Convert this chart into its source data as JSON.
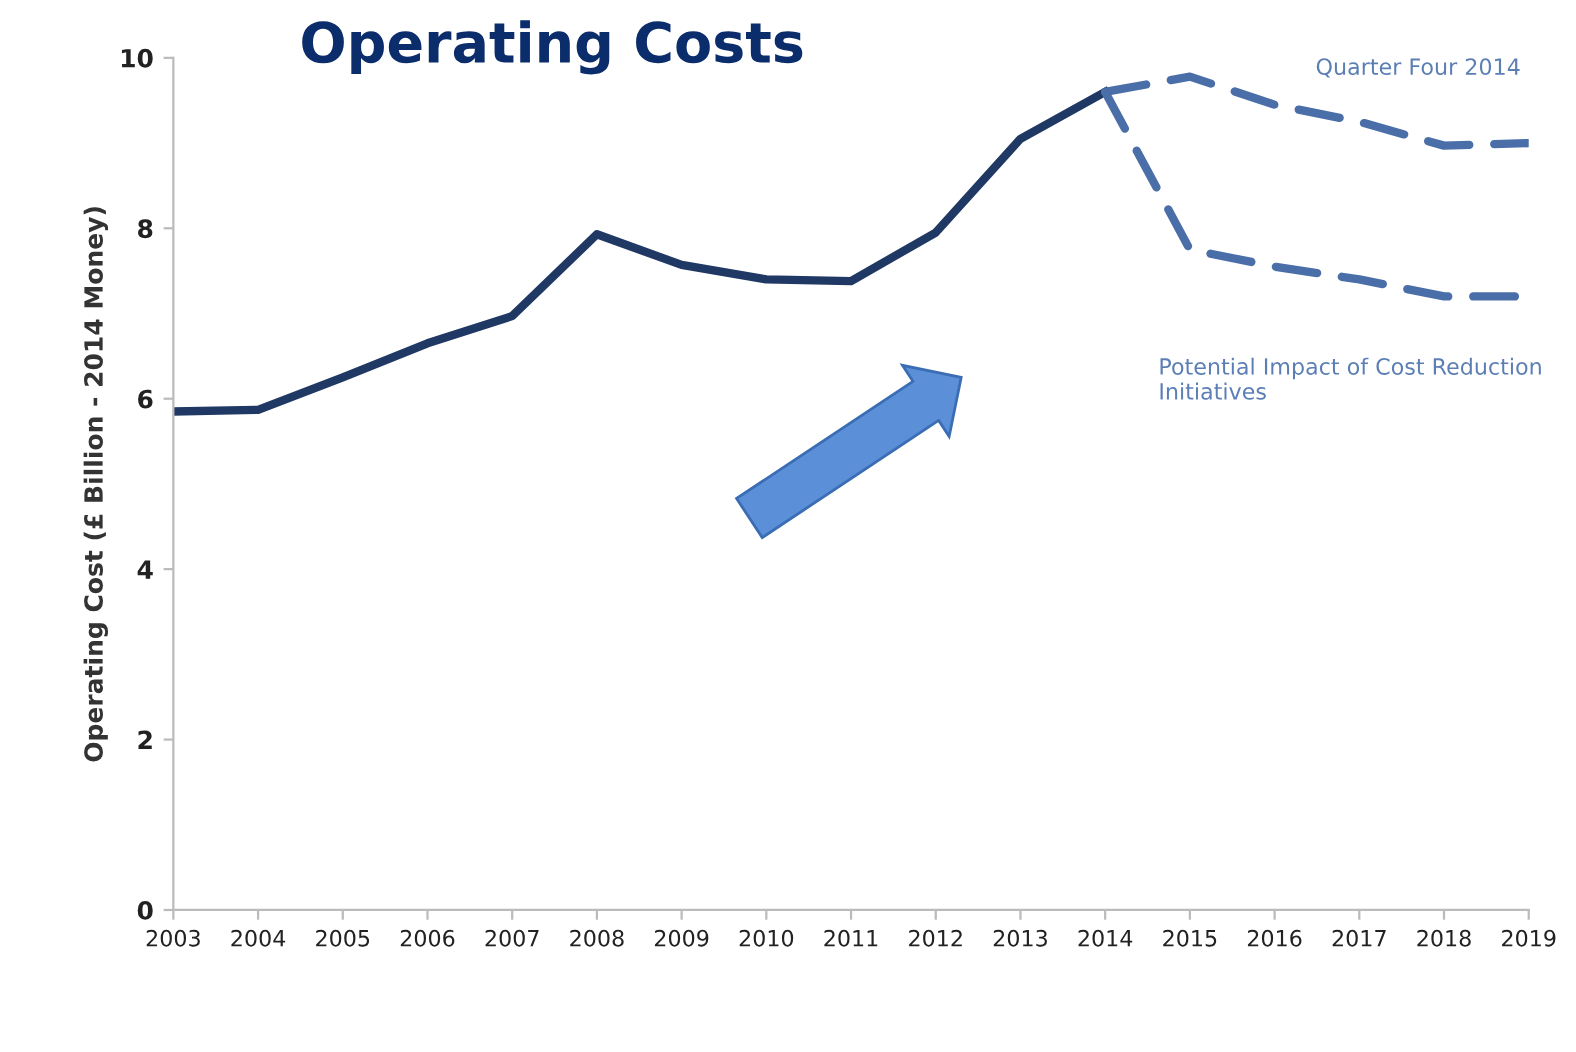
{
  "chart_data": {
    "type": "line",
    "title": "Operating Costs",
    "ylabel": "Operating Cost (£ Billion - 2014 Money)",
    "annotations": [
      "Quarter Four 2014",
      "Potential Impact of Cost Reduction Initiatives"
    ],
    "xlim": [
      2003,
      2019
    ],
    "xticks": [
      2003,
      2004,
      2005,
      2006,
      2007,
      2008,
      2009,
      2010,
      2011,
      2012,
      2013,
      2014,
      2015,
      2016,
      2017,
      2018,
      2019
    ],
    "ylim": [
      0,
      10
    ],
    "yticks": [
      0,
      2,
      4,
      6,
      8,
      10
    ],
    "grid": false,
    "legend": false,
    "marker": "none",
    "series": [
      {
        "color": "#1f3864",
        "line_style": "solid",
        "x": [
          2003,
          2004,
          2005,
          2006,
          2007,
          2008,
          2009,
          2010,
          2011,
          2012,
          2013,
          2014
        ],
        "values": [
          5.85,
          5.87,
          6.25,
          6.65,
          6.97,
          7.93,
          7.57,
          7.4,
          7.38,
          7.95,
          9.05,
          9.6
        ]
      },
      {
        "color": "#4a6ea8",
        "line_style": "dashed",
        "x": [
          2014,
          2015,
          2016,
          2017,
          2018,
          2019
        ],
        "values": [
          9.6,
          9.78,
          9.45,
          9.25,
          8.97,
          9.0
        ]
      },
      {
        "color": "#4a6ea8",
        "line_style": "dashed",
        "x": [
          2014,
          2015,
          2016,
          2017,
          2018,
          2019
        ],
        "values": [
          9.6,
          7.75,
          7.55,
          7.4,
          7.2,
          7.2
        ]
      }
    ]
  }
}
